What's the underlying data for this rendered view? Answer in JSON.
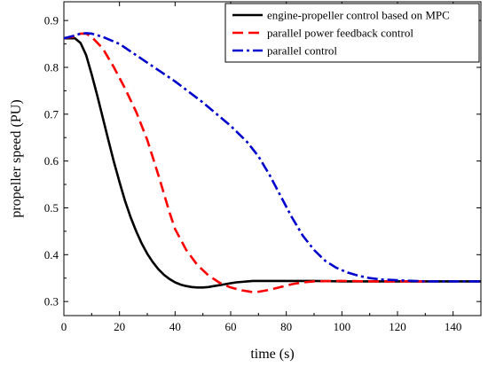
{
  "chart_data": {
    "type": "line",
    "title": "",
    "xlabel": "time (s)",
    "ylabel": "propeller speed (PU)",
    "xlim": [
      0,
      150
    ],
    "ylim": [
      0.27,
      0.94
    ],
    "xticks": [
      0,
      20,
      40,
      60,
      80,
      100,
      120,
      140
    ],
    "yticks": [
      0.3,
      0.4,
      0.5,
      0.6,
      0.7,
      0.8,
      0.9
    ],
    "grid": false,
    "legend_position": "top-right",
    "series": [
      {
        "name": "engine-propeller control based on MPC",
        "color": "#000000",
        "dash": "solid",
        "x": [
          0,
          4,
          6,
          8,
          10,
          12,
          14,
          16,
          18,
          20,
          22,
          24,
          26,
          28,
          30,
          32,
          34,
          36,
          38,
          40,
          42,
          44,
          46,
          48,
          50,
          52,
          54,
          56,
          58,
          60,
          62,
          64,
          66,
          68,
          70,
          75,
          80,
          90,
          100,
          110,
          120,
          130,
          140,
          150
        ],
        "y": [
          0.862,
          0.862,
          0.852,
          0.826,
          0.785,
          0.74,
          0.692,
          0.645,
          0.598,
          0.555,
          0.515,
          0.48,
          0.45,
          0.424,
          0.402,
          0.384,
          0.369,
          0.357,
          0.348,
          0.341,
          0.336,
          0.333,
          0.331,
          0.33,
          0.33,
          0.331,
          0.333,
          0.335,
          0.337,
          0.339,
          0.341,
          0.342,
          0.343,
          0.344,
          0.344,
          0.344,
          0.344,
          0.344,
          0.343,
          0.343,
          0.343,
          0.343,
          0.343,
          0.343
        ]
      },
      {
        "name": "parallel power feedback control",
        "color": "#ff0000",
        "dash": "dashed",
        "x": [
          0,
          4,
          6,
          8,
          10,
          14,
          18,
          22,
          26,
          30,
          34,
          38,
          40,
          44,
          48,
          52,
          56,
          60,
          64,
          68,
          70,
          74,
          78,
          82,
          86,
          90,
          100,
          110,
          120,
          130
        ],
        "y": [
          0.862,
          0.866,
          0.872,
          0.872,
          0.865,
          0.84,
          0.8,
          0.755,
          0.705,
          0.645,
          0.57,
          0.49,
          0.455,
          0.41,
          0.378,
          0.356,
          0.34,
          0.33,
          0.324,
          0.32,
          0.321,
          0.325,
          0.331,
          0.337,
          0.341,
          0.343,
          0.344,
          0.343,
          0.343,
          0.343
        ]
      },
      {
        "name": "parallel control",
        "color": "#0000cc",
        "dash": "dashdot",
        "x": [
          0,
          4,
          6,
          8,
          10,
          14,
          20,
          30,
          40,
          50,
          60,
          66,
          70,
          74,
          78,
          82,
          86,
          90,
          94,
          98,
          102,
          106,
          110,
          114,
          118,
          122,
          126,
          130,
          140,
          150
        ],
        "y": [
          0.862,
          0.868,
          0.872,
          0.873,
          0.872,
          0.865,
          0.85,
          0.81,
          0.77,
          0.725,
          0.675,
          0.64,
          0.61,
          0.57,
          0.525,
          0.48,
          0.44,
          0.41,
          0.387,
          0.372,
          0.362,
          0.355,
          0.35,
          0.347,
          0.346,
          0.345,
          0.344,
          0.343,
          0.343,
          0.343
        ]
      }
    ]
  }
}
